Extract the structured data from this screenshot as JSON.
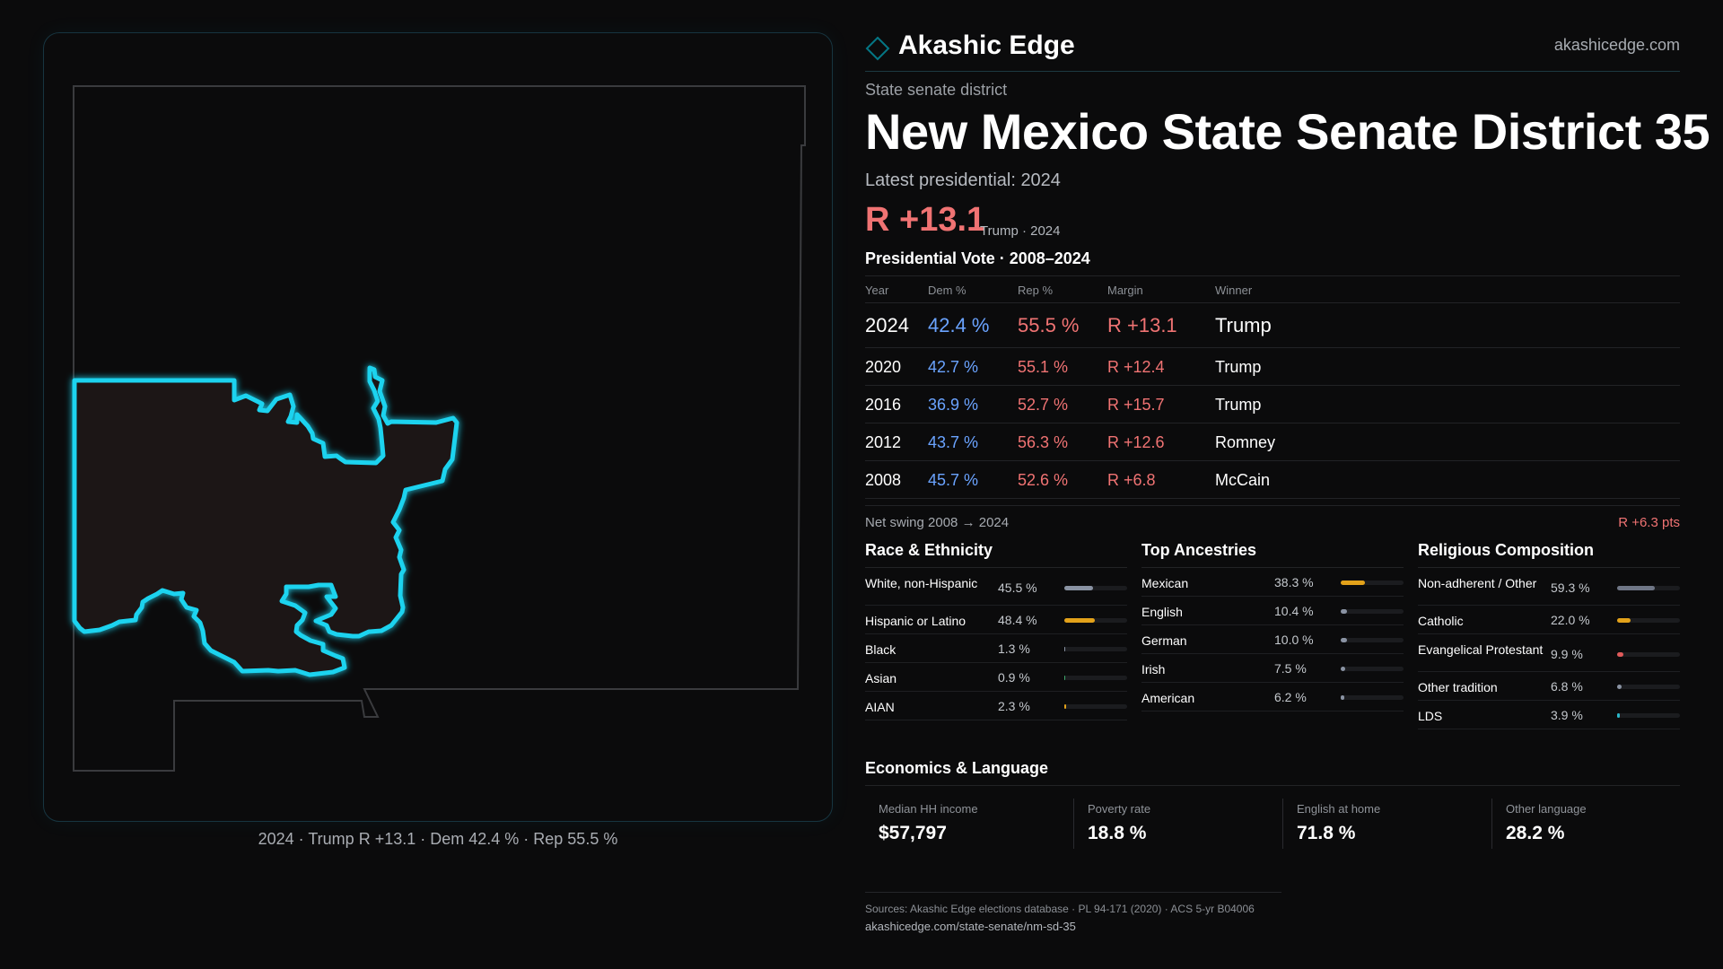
{
  "brand": {
    "name": "Akashic Edge",
    "url": "akashicedge.com",
    "accent_color": "#00cfe8"
  },
  "page": {
    "kicker": "State senate district",
    "title": "New Mexico State Senate District 35",
    "latest_label": "Latest presidential: 2024",
    "latest_margin": "R +13.1",
    "latest_margin_sub": "Trump · 2024",
    "presidential_heading": "Presidential Vote · 2008–2024"
  },
  "map": {
    "caption": "2024 · Trump R +13.1 · Dem 42.4 % · Rep 55.5 %",
    "district_fill": "#1d1213",
    "district_stroke": "#1fd3ef",
    "state_outline": "#3a3b3e"
  },
  "results": {
    "headers": {
      "year": "Year",
      "dem": "Dem %",
      "rep": "Rep %",
      "margin": "Margin",
      "winner": "Winner"
    },
    "rows": [
      {
        "year": "2024",
        "dem": "42.4 %",
        "rep": "55.5 %",
        "margin": "R +13.1",
        "winner": "Trump"
      },
      {
        "year": "2020",
        "dem": "42.7 %",
        "rep": "55.1 %",
        "margin": "R +12.4",
        "winner": "Trump"
      },
      {
        "year": "2016",
        "dem": "36.9 %",
        "rep": "52.7 %",
        "margin": "R +15.7",
        "winner": "Trump"
      },
      {
        "year": "2012",
        "dem": "43.7 %",
        "rep": "56.3 %",
        "margin": "R +12.6",
        "winner": "Romney"
      },
      {
        "year": "2008",
        "dem": "45.7 %",
        "rep": "52.6 %",
        "margin": "R +6.8",
        "winner": "McCain"
      }
    ],
    "swing_label": "Net swing 2008 → 2024",
    "swing_value": "R +6.3 pts",
    "dem_color": "#6aa3ff",
    "rep_color": "#f07373"
  },
  "race": {
    "title": "Race & Ethnicity",
    "items": [
      {
        "label": "White, non-Hispanic",
        "value": "45.5 %",
        "pct": 45.5,
        "color": "#8a93a3"
      },
      {
        "label": "Hispanic or Latino",
        "value": "48.4 %",
        "pct": 48.4,
        "color": "#e3a21a"
      },
      {
        "label": "Black",
        "value": "1.3 %",
        "pct": 1.3,
        "color": "#8a93a3"
      },
      {
        "label": "Asian",
        "value": "0.9 %",
        "pct": 0.9,
        "color": "#3fa86b"
      },
      {
        "label": "AIAN",
        "value": "2.3 %",
        "pct": 2.3,
        "color": "#e3a21a"
      }
    ]
  },
  "ancestry": {
    "title": "Top Ancestries",
    "items": [
      {
        "label": "Mexican",
        "value": "38.3 %",
        "pct": 38.3,
        "color": "#e3a21a"
      },
      {
        "label": "English",
        "value": "10.4 %",
        "pct": 10.4,
        "color": "#8a93a3"
      },
      {
        "label": "German",
        "value": "10.0 %",
        "pct": 10.0,
        "color": "#8a93a3"
      },
      {
        "label": "Irish",
        "value": "7.5 %",
        "pct": 7.5,
        "color": "#8a93a3"
      },
      {
        "label": "American",
        "value": "6.2 %",
        "pct": 6.2,
        "color": "#8a93a3"
      }
    ]
  },
  "religion": {
    "title": "Religious Composition",
    "items": [
      {
        "label": "Non-adherent / Other",
        "value": "59.3 %",
        "pct": 59.3,
        "color": "#6f7686"
      },
      {
        "label": "Catholic",
        "value": "22.0 %",
        "pct": 22.0,
        "color": "#e3a21a"
      },
      {
        "label": "Evangelical Protestant",
        "value": "9.9 %",
        "pct": 9.9,
        "color": "#e05a5a"
      },
      {
        "label": "Other tradition",
        "value": "6.8 %",
        "pct": 6.8,
        "color": "#8a93a3"
      },
      {
        "label": "LDS",
        "value": "3.9 %",
        "pct": 3.9,
        "color": "#2ab7c9"
      }
    ]
  },
  "economics": {
    "title": "Economics & Language",
    "items": [
      {
        "label": "Median HH income",
        "value": "$57,797"
      },
      {
        "label": "Poverty rate",
        "value": "18.8 %"
      },
      {
        "label": "English at home",
        "value": "71.8 %"
      },
      {
        "label": "Other language",
        "value": "28.2 %"
      }
    ]
  },
  "footer": {
    "sources": "Sources: Akashic Edge elections database · PL 94-171 (2020) · ACS 5-yr B04006",
    "url": "akashicedge.com/state-senate/nm-sd-35"
  }
}
